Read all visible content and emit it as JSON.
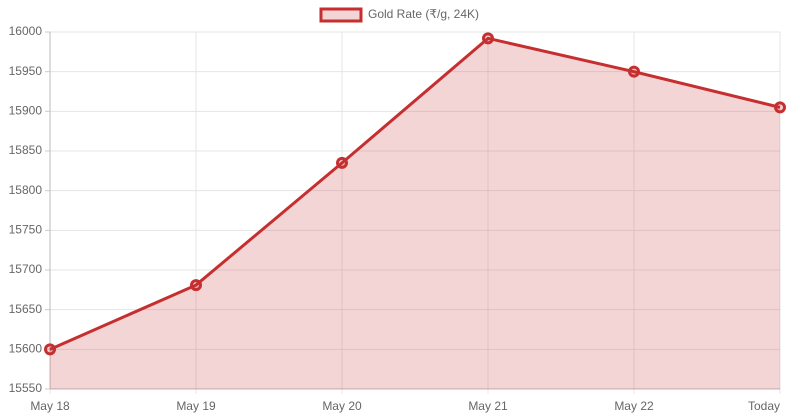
{
  "chart_data": {
    "type": "line",
    "categories": [
      "May 18",
      "May 19",
      "May 20",
      "May 21",
      "May 22",
      "Today"
    ],
    "series": [
      {
        "name": "Gold Rate (₹/g, 24K)",
        "color": "#c62f2f",
        "fill": "rgba(198,47,47,0.2)",
        "values": [
          15600,
          15681,
          15835,
          15992,
          15950,
          15905
        ]
      }
    ],
    "ylim": [
      15550,
      16000
    ],
    "yticks": [
      15550,
      15600,
      15650,
      15700,
      15750,
      15800,
      15850,
      15900,
      15950,
      16000
    ],
    "grid": true,
    "legend": "top"
  }
}
